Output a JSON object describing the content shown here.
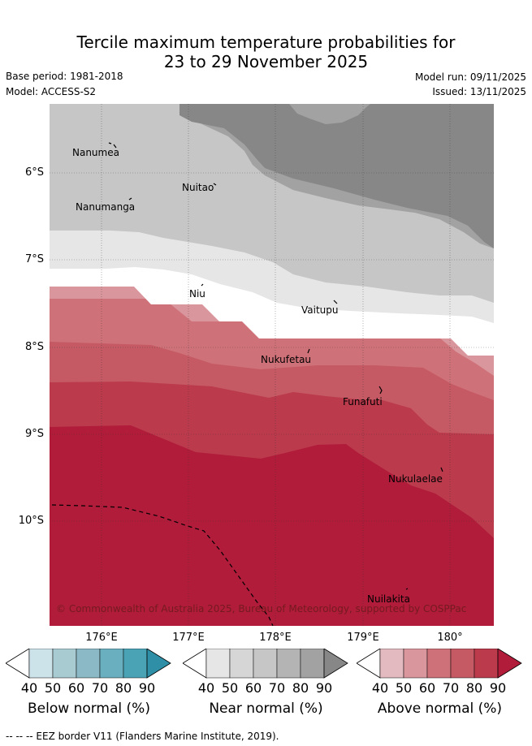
{
  "title": {
    "line1": "Tercile maximum temperature probabilities for",
    "line2": "23 to 29 November 2025"
  },
  "meta": {
    "base_period": "Base period: 1981-2018",
    "model": "Model: ACCESS-S2",
    "model_run": "Model run: 09/11/2025",
    "issued": "Issued: 13/11/2025"
  },
  "axes": {
    "lat_labels": [
      "6°S",
      "7°S",
      "8°S",
      "9°S",
      "10°S"
    ],
    "lon_labels": [
      "176°E",
      "177°E",
      "178°E",
      "179°E",
      "180°"
    ]
  },
  "places": [
    "Nanumea",
    "Nuitao",
    "Nanumanga",
    "Niu",
    "Vaitupu",
    "Nukufetau",
    "Funafuti",
    "Nukulaelae",
    "Nuilakita"
  ],
  "credit": "© Commonwealth of Australia 2025, Bureau of Meteorology, supported by COSPPac",
  "colorbars": [
    {
      "title": "Below normal (%)",
      "ticks": [
        "40",
        "50",
        "60",
        "70",
        "80",
        "90"
      ],
      "colors": [
        "#ffffff",
        "#cde3ea",
        "#a8cbd2",
        "#8bb9c6",
        "#6aafc0",
        "#4aa3b4",
        "#2e8fa6"
      ]
    },
    {
      "title": "Near normal (%)",
      "ticks": [
        "40",
        "50",
        "60",
        "70",
        "80",
        "90"
      ],
      "colors": [
        "#ffffff",
        "#e6e6e6",
        "#d6d6d6",
        "#c6c6c6",
        "#b4b4b4",
        "#a2a2a2",
        "#878787"
      ]
    },
    {
      "title": "Above normal (%)",
      "ticks": [
        "40",
        "50",
        "60",
        "70",
        "80",
        "90"
      ],
      "colors": [
        "#ffffff",
        "#e3bac0",
        "#d9969c",
        "#cf7178",
        "#c55a64",
        "#bb3a4c",
        "#b01c3a"
      ]
    }
  ],
  "footer": "-- -- -- EEZ border V11 (Flanders Marine Institute, 2019)."
}
